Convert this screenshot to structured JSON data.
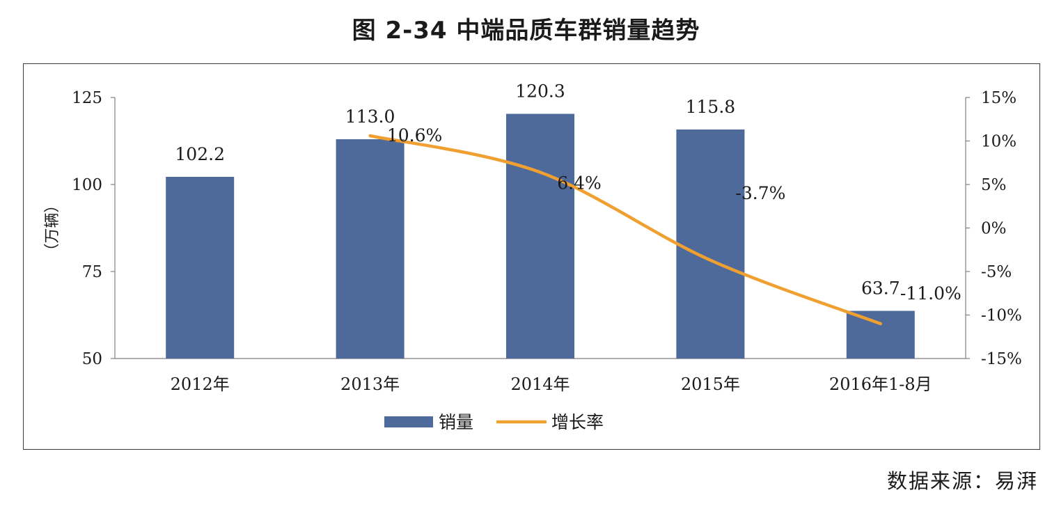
{
  "title": "图 2-34    中端品质车群销量趋势",
  "source": "数据来源：易湃",
  "colors": {
    "bar": "#4e6a9b",
    "line": "#f0a030",
    "axis": "#7f7f7f",
    "text": "#1a1a1a"
  },
  "chart_data": {
    "type": "bar",
    "categories": [
      "2012年",
      "2013年",
      "2014年",
      "2015年",
      "2016年1-8月"
    ],
    "series": [
      {
        "name": "销量",
        "type": "bar",
        "axis": "left",
        "values": [
          102.2,
          113.0,
          120.3,
          115.8,
          63.7
        ],
        "labels": [
          "102.2",
          "113.0",
          "120.3",
          "115.8",
          "63.7"
        ]
      },
      {
        "name": "增长率",
        "type": "line",
        "axis": "right",
        "values": [
          null,
          10.6,
          6.4,
          -3.7,
          -11.0
        ],
        "labels": [
          "",
          "10.6%",
          "6.4%",
          "-3.7%",
          "-11.0%"
        ]
      }
    ],
    "ylabel": "（万辆）",
    "ylim": [
      50,
      125
    ],
    "yticks": [
      "50",
      "75",
      "100",
      "125"
    ],
    "y2lim": [
      -15,
      15
    ],
    "y2ticks": [
      "-15%",
      "-10%",
      "-5%",
      "0%",
      "5%",
      "10%",
      "15%"
    ],
    "legend_position": "bottom",
    "grid": false
  }
}
